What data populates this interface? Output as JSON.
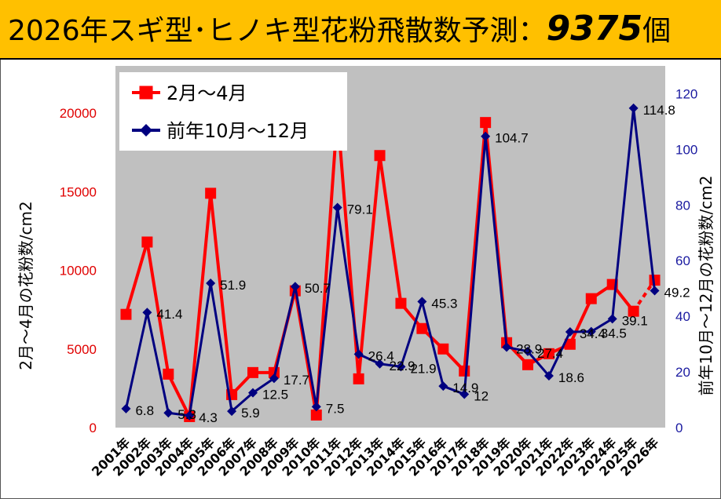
{
  "header": {
    "title_prefix": "2026年スギ型･ヒノキ型花粉飛散数予測：",
    "title_number": "9375",
    "title_suffix": "個"
  },
  "colors": {
    "header_bg": "#ffc000",
    "plot_bg": "#c0c0c0",
    "series_red": "#ff0000",
    "series_navy": "#000080",
    "left_axis": "#e00000",
    "right_axis": "#1a1aa0"
  },
  "chart_data": {
    "type": "line",
    "title": "",
    "xlabel": "",
    "ylabel_left": "2月～4月の花粉数/cm2",
    "ylabel_right": "前年10月～12月の花粉数/cm2",
    "ylim_left": [
      0,
      23000
    ],
    "yticks_left": [
      "0",
      "5000",
      "10000",
      "15000",
      "20000"
    ],
    "ylim_right": [
      0,
      130
    ],
    "yticks_right": [
      "0",
      "20",
      "40",
      "60",
      "80",
      "100",
      "120"
    ],
    "grid": false,
    "legend_position": "top-left",
    "categories": [
      "2001年",
      "2002年",
      "2003年",
      "2004年",
      "2005年",
      "2006年",
      "2007年",
      "2008年",
      "2009年",
      "2010年",
      "2011年",
      "2012年",
      "2013年",
      "2014年",
      "2015年",
      "2016年",
      "2017年",
      "2018年",
      "2019年",
      "2020年",
      "2021年",
      "2022年",
      "2023年",
      "2024年",
      "2025年",
      "2026年"
    ],
    "series": [
      {
        "name": "2月～4月",
        "axis": "left",
        "color": "#ff0000",
        "marker": "square",
        "values": [
          7200,
          11800,
          3400,
          700,
          14900,
          2100,
          3500,
          3500,
          8700,
          800,
          20000,
          3100,
          17300,
          7900,
          6300,
          5000,
          3600,
          19400,
          5400,
          4000,
          4700,
          5300,
          8200,
          9100,
          7400,
          9375
        ],
        "last_segment_style": "dashed"
      },
      {
        "name": "前年10月～12月",
        "axis": "right",
        "color": "#000080",
        "marker": "diamond",
        "values": [
          6.8,
          41.4,
          5.3,
          4.3,
          51.9,
          5.9,
          12.5,
          17.7,
          50.7,
          7.5,
          79.1,
          26.4,
          22.9,
          21.9,
          45.3,
          14.9,
          12,
          104.7,
          28.9,
          27.4,
          18.6,
          34.4,
          34.5,
          39.1,
          114.8,
          49.2
        ],
        "data_labels": [
          "6.8",
          "41.4",
          "5.3",
          "4.3",
          "51.9",
          "5.9",
          "12.5",
          "17.7",
          "50.7",
          "7.5",
          "79.1",
          "26.4",
          "22.9",
          "21.9",
          "45.3",
          "14.9",
          "12",
          "104.7",
          "28.9",
          "27.4",
          "18.6",
          "34.4",
          "34.5",
          "39.1",
          "114.8",
          "49.2"
        ]
      }
    ]
  }
}
